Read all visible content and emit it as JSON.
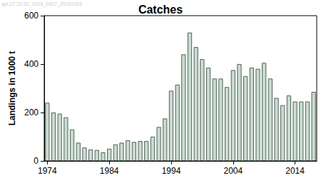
{
  "chart_data": {
    "type": "bar",
    "title": "Catches",
    "y_label": "Landings in 1000 t",
    "annotation": "spr.27.22-32_2016_0427_20161003",
    "categories": [
      "1974",
      null,
      null,
      null,
      null,
      null,
      null,
      null,
      null,
      null,
      "1984",
      null,
      null,
      null,
      null,
      null,
      null,
      null,
      null,
      null,
      "1994",
      null,
      null,
      null,
      null,
      null,
      null,
      null,
      null,
      null,
      "2004",
      null,
      null,
      null,
      null,
      null,
      null,
      null,
      null,
      null,
      "2014",
      null,
      null,
      null
    ],
    "values": [
      240,
      200,
      195,
      180,
      130,
      75,
      55,
      47,
      45,
      35,
      50,
      68,
      75,
      85,
      78,
      82,
      82,
      100,
      140,
      175,
      290,
      315,
      440,
      530,
      470,
      420,
      385,
      340,
      340,
      305,
      375,
      400,
      350,
      385,
      380,
      405,
      340,
      260,
      230,
      270,
      245,
      245,
      245,
      285
    ],
    "color": "#c8dccf",
    "ylim": [
      0,
      600
    ],
    "yticks": [
      0,
      200,
      400,
      600
    ],
    "grid": false
  }
}
